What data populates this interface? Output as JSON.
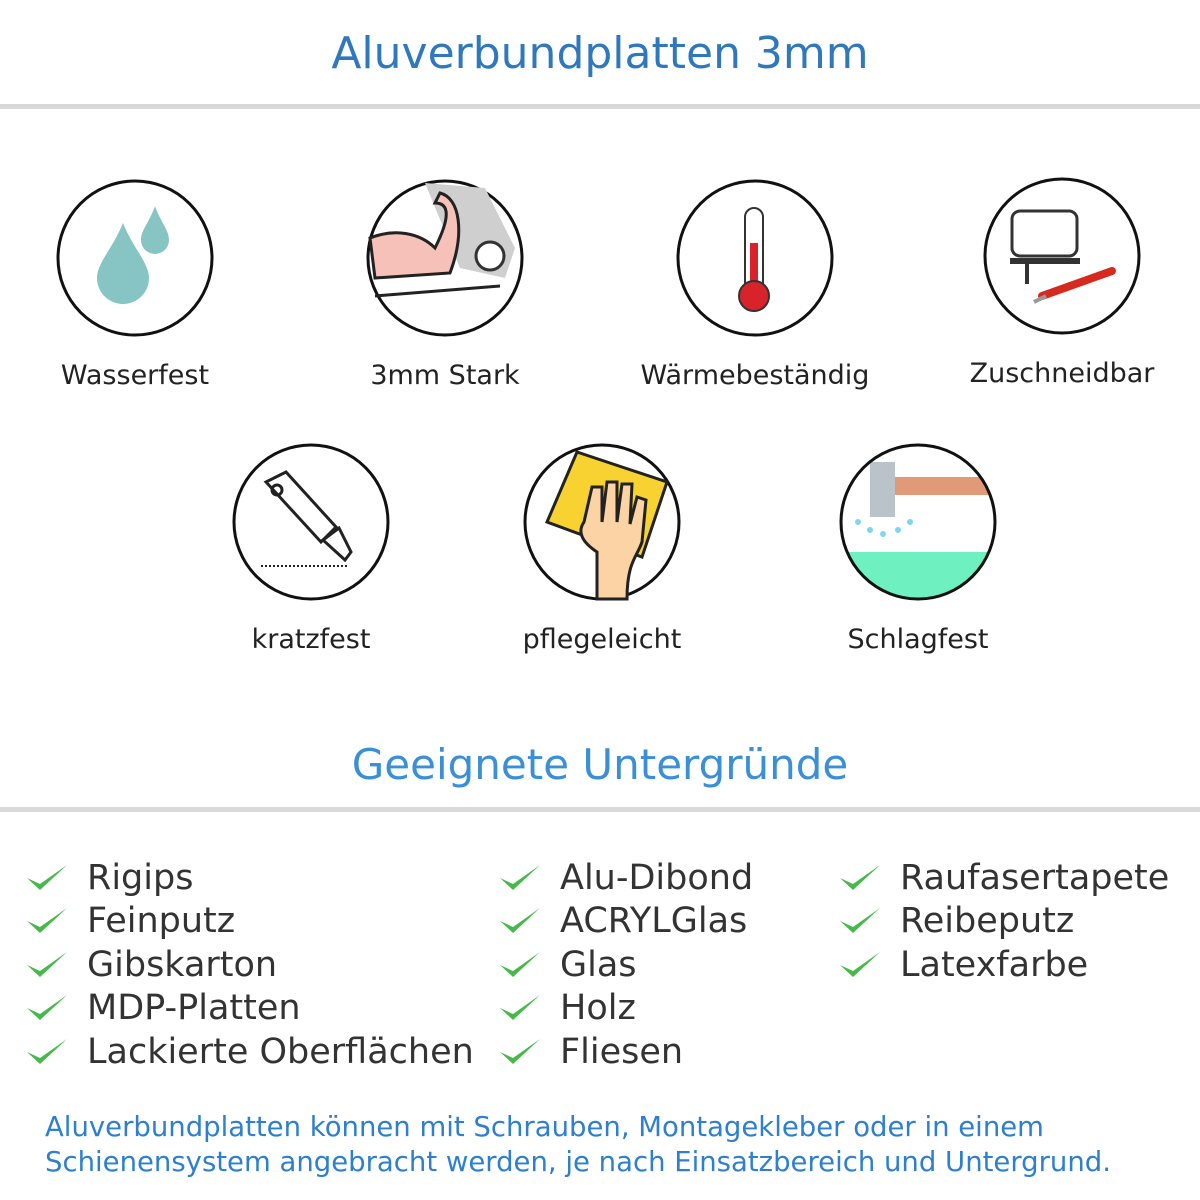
{
  "header": {
    "title": "Aluverbundplatten 3mm"
  },
  "features": [
    {
      "label": "Wasserfest",
      "icon": "water-drops-icon"
    },
    {
      "label": "3mm Stark",
      "icon": "strong-arm-icon"
    },
    {
      "label": "Wärmebeständig",
      "icon": "thermometer-icon"
    },
    {
      "label": "Zuschneidbar",
      "icon": "jigsaw-icon"
    },
    {
      "label": "kratzfest",
      "icon": "cutter-knife-icon"
    },
    {
      "label": "pflegeleicht",
      "icon": "cleaning-hand-icon"
    },
    {
      "label": "Schlagfest",
      "icon": "hammer-icon"
    }
  ],
  "surfaces": {
    "title": "Geeignete Untergründe",
    "columns": [
      [
        "Rigips",
        "Feinputz",
        "Gibskarton",
        "MDP-Platten",
        "Lackierte Oberflächen"
      ],
      [
        "Alu-Dibond",
        "ACRYLGlas",
        "Glas",
        "Holz",
        "Fliesen"
      ],
      [
        "Raufasertapete",
        "Reibeputz",
        "Latexfarbe"
      ]
    ]
  },
  "footer": {
    "line1": "Aluverbundplatten können mit Schrauben, Montagekleber oder in einem",
    "line2": "Schienensystem angebracht werden, je nach Einsatzbereich und Untergrund."
  },
  "colors": {
    "title": "#2f78bd",
    "heading": "#3a8fd6",
    "check": "#46b94a",
    "footer": "#2e7fd0"
  }
}
